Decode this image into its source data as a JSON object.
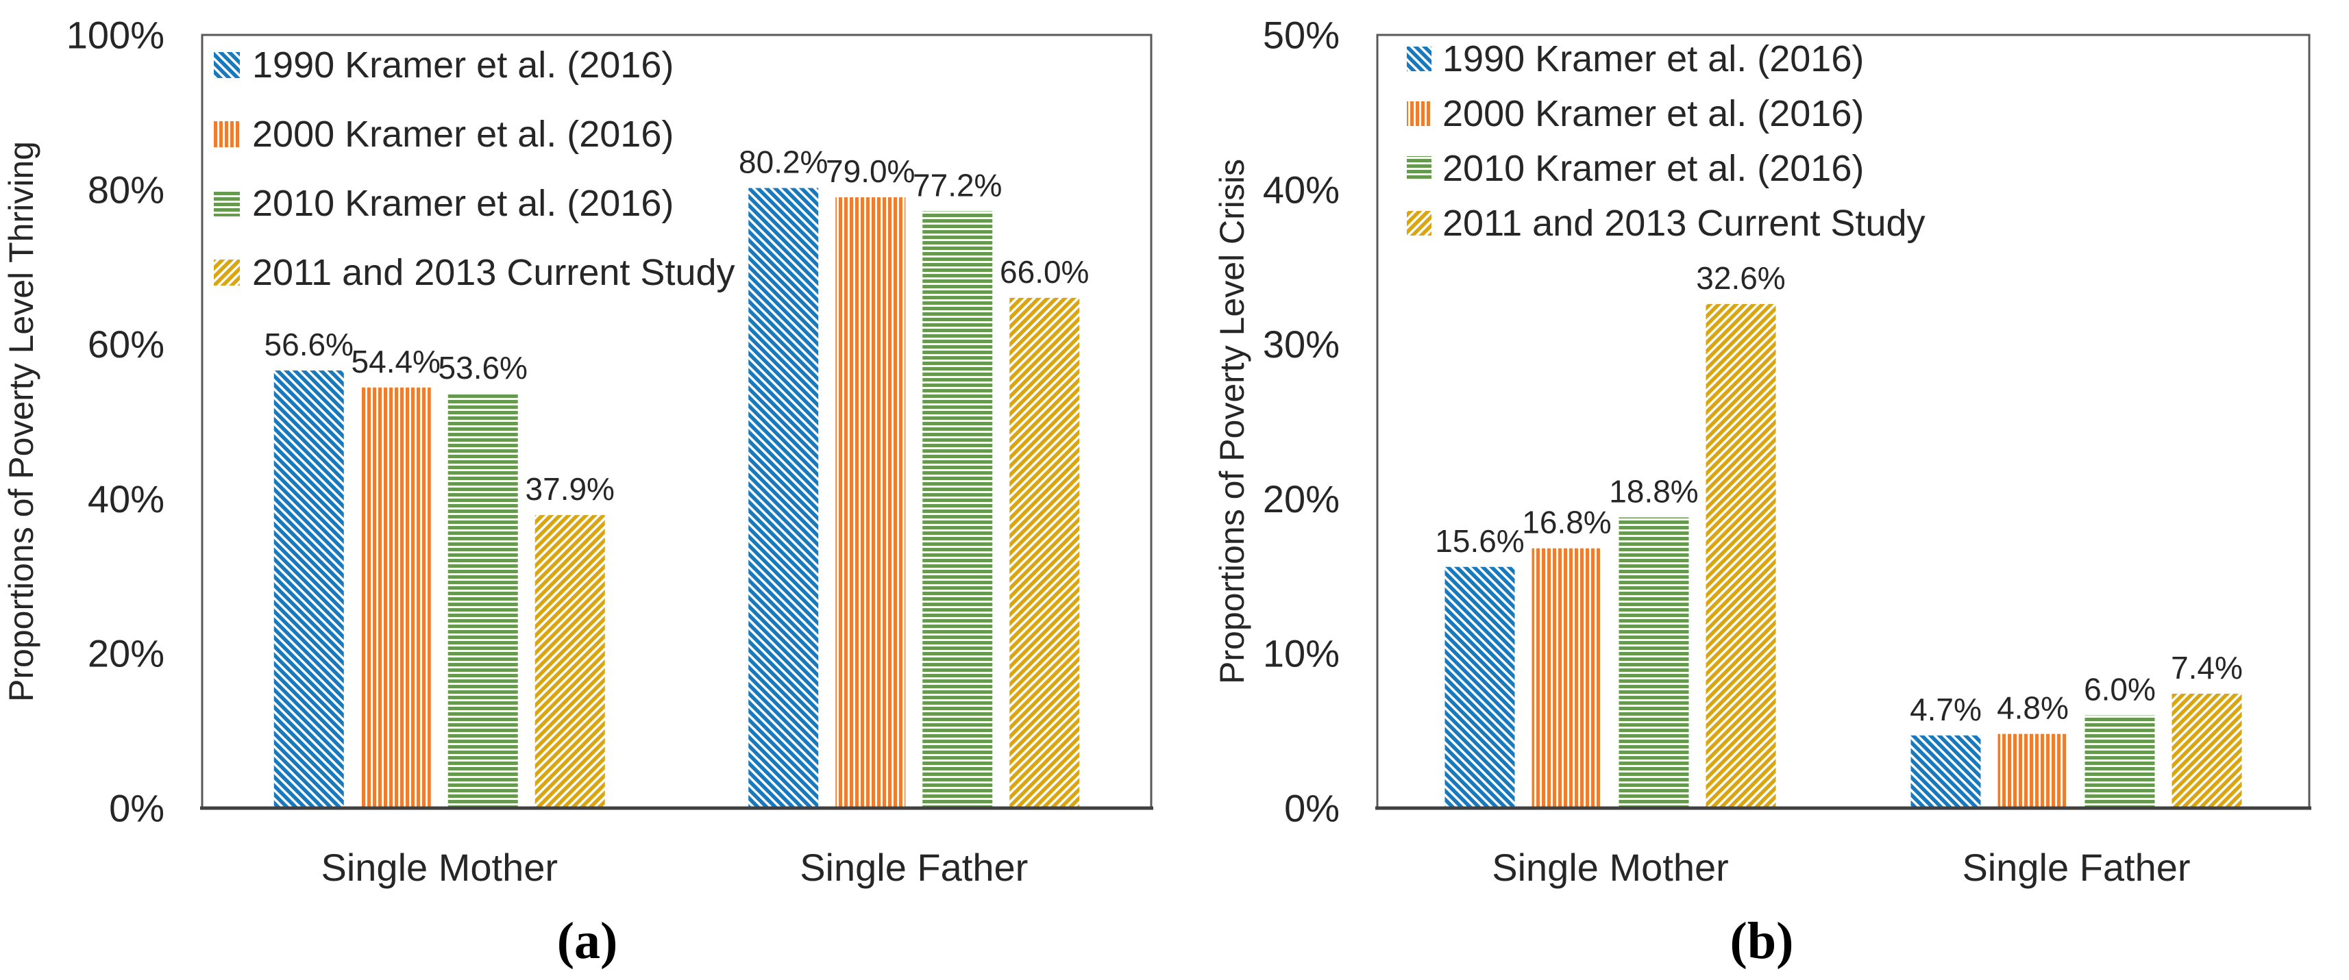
{
  "colors": {
    "series_blue": "#1879bd",
    "series_orange": "#ed7d31",
    "series_green": "#669a4e",
    "series_gold": "#d9a511",
    "text": "#262626",
    "plot_frame": "#595959",
    "axis_line": "#404040",
    "background": "#ffffff"
  },
  "chart_data": [
    {
      "type": "bar",
      "panel_caption": "(a)",
      "title": "",
      "xlabel": "",
      "ylabel": "Proportions of Poverty Level Thriving",
      "categories": [
        "Single Mother",
        "Single Father"
      ],
      "series": [
        {
          "name": "1990 Kramer et al. (2016)",
          "values": [
            56.6,
            80.2
          ],
          "labels": [
            "56.6%",
            "80.2%"
          ],
          "color": "#1879bd",
          "hatch": "diagonal-down"
        },
        {
          "name": "2000 Kramer et al. (2016)",
          "values": [
            54.4,
            79.0
          ],
          "labels": [
            "54.4%",
            "79.0%"
          ],
          "color": "#ed7d31",
          "hatch": "vertical"
        },
        {
          "name": "2010 Kramer et al. (2016)",
          "values": [
            53.6,
            77.2
          ],
          "labels": [
            "53.6%",
            "77.2%"
          ],
          "color": "#669a4e",
          "hatch": "horizontal"
        },
        {
          "name": "2011 and 2013 Current Study",
          "values": [
            37.9,
            66.0
          ],
          "labels": [
            "37.9%",
            "66.0%"
          ],
          "color": "#d9a511",
          "hatch": "diagonal-up"
        }
      ],
      "ylim": [
        0,
        100
      ],
      "yticks": [
        {
          "value": 0,
          "label": "0%"
        },
        {
          "value": 20,
          "label": "20%"
        },
        {
          "value": 40,
          "label": "40%"
        },
        {
          "value": 60,
          "label": "60%"
        },
        {
          "value": 80,
          "label": "80%"
        },
        {
          "value": 100,
          "label": "100%"
        }
      ],
      "grid": false,
      "legend_position": "upper-left-inside"
    },
    {
      "type": "bar",
      "panel_caption": "(b)",
      "title": "",
      "xlabel": "",
      "ylabel": "Proportions of Poverty Level Crisis",
      "categories": [
        "Single Mother",
        "Single Father"
      ],
      "series": [
        {
          "name": "1990 Kramer et al. (2016)",
          "values": [
            15.6,
            4.7
          ],
          "labels": [
            "15.6%",
            "4.7%"
          ],
          "color": "#1879bd",
          "hatch": "diagonal-down"
        },
        {
          "name": "2000 Kramer et al. (2016)",
          "values": [
            16.8,
            4.8
          ],
          "labels": [
            "16.8%",
            "4.8%"
          ],
          "color": "#ed7d31",
          "hatch": "vertical"
        },
        {
          "name": "2010 Kramer et al. (2016)",
          "values": [
            18.8,
            6.0
          ],
          "labels": [
            "18.8%",
            "6.0%"
          ],
          "color": "#669a4e",
          "hatch": "horizontal"
        },
        {
          "name": "2011 and 2013 Current Study",
          "values": [
            32.6,
            7.4
          ],
          "labels": [
            "32.6%",
            "7.4%"
          ],
          "color": "#d9a511",
          "hatch": "diagonal-up"
        }
      ],
      "ylim": [
        0,
        50
      ],
      "yticks": [
        {
          "value": 0,
          "label": "0%"
        },
        {
          "value": 10,
          "label": "10%"
        },
        {
          "value": 20,
          "label": "20%"
        },
        {
          "value": 30,
          "label": "30%"
        },
        {
          "value": 40,
          "label": "40%"
        },
        {
          "value": 50,
          "label": "50%"
        }
      ],
      "grid": false,
      "legend_position": "upper-left-inside"
    }
  ]
}
